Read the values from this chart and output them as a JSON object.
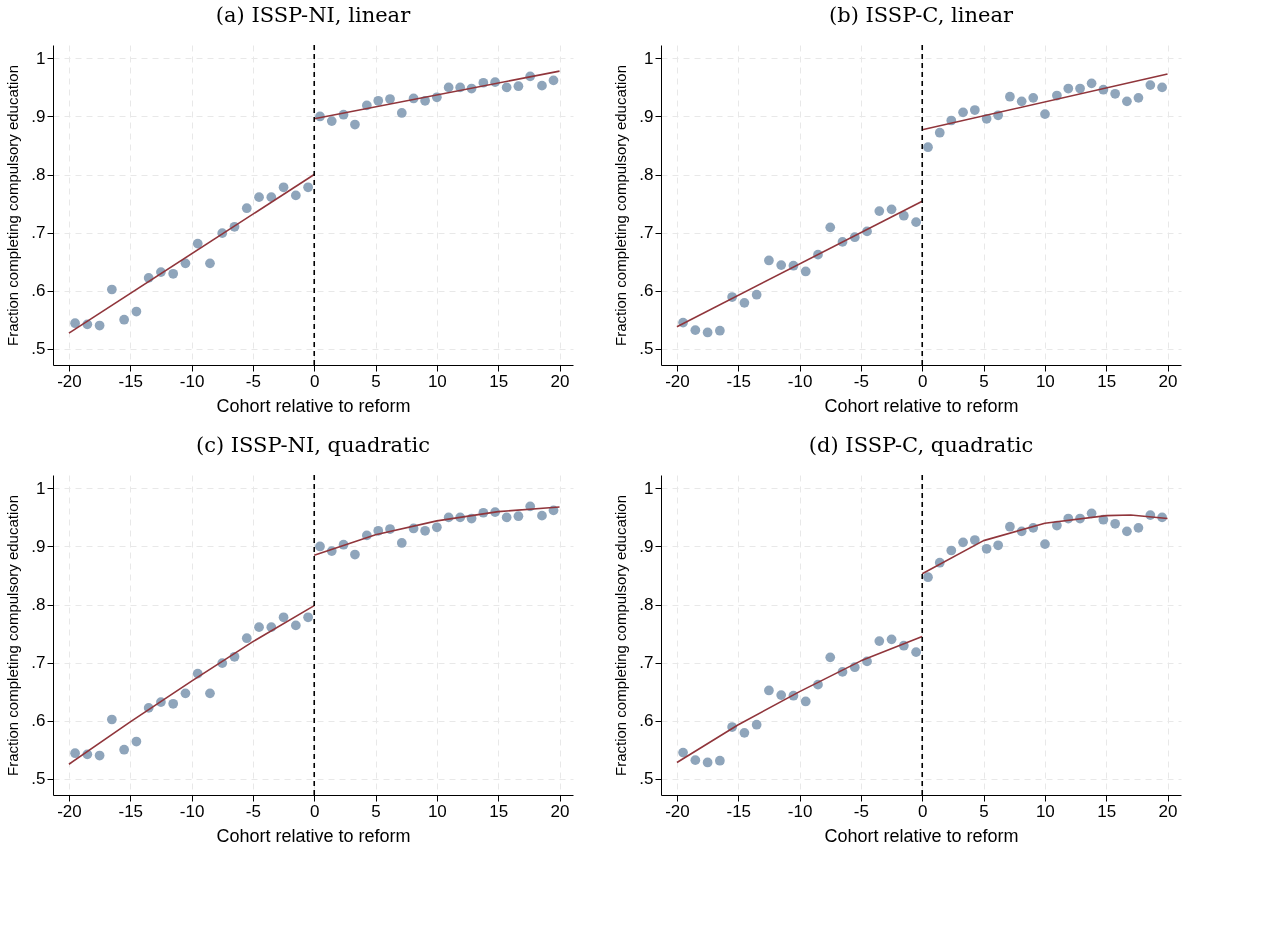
{
  "chart_data": [
    {
      "type": "scatter",
      "title": "(a) ISSP-NI, linear",
      "xlabel": "Cohort relative to reform",
      "ylabel": "Fraction completing compulsory education",
      "xlim": [
        -21.3,
        21.1
      ],
      "ylim": [
        0.472,
        1.023
      ],
      "xticks": [
        -20,
        -15,
        -10,
        -5,
        0,
        5,
        10,
        15,
        20
      ],
      "yticks": [
        {
          "value": 0.5,
          "label": ".5"
        },
        {
          "value": 0.6,
          "label": ".6"
        },
        {
          "value": 0.7,
          "label": ".7"
        },
        {
          "value": 0.8,
          "label": ".8"
        },
        {
          "value": 0.9,
          "label": ".9"
        },
        1
      ],
      "grid": true,
      "marker": "circle",
      "ref_lines": [
        {
          "axis": "x",
          "value": 0,
          "color": "#000000",
          "line_style": "dashed"
        }
      ],
      "series": [
        {
          "color": "#8fa5bb",
          "x": [
            -19.5,
            -18.5,
            -17.5,
            -16.5,
            -15.5,
            -14.5,
            -13.5,
            -12.5,
            -11.5,
            -10.5,
            -9.5,
            -8.5,
            -7.5,
            -6.5,
            -5.5,
            -4.5,
            -3.5,
            -2.5,
            -1.5,
            -0.5,
            0.47,
            1.43,
            2.39,
            3.32,
            4.29,
            5.22,
            6.18,
            7.14,
            8.1,
            9.04,
            10.0,
            10.96,
            11.9,
            12.83,
            13.79,
            14.75,
            15.69,
            16.65,
            17.61,
            18.57,
            19.51
          ],
          "values": [
            0.544,
            0.542,
            0.54,
            0.602,
            0.55,
            0.564,
            0.622,
            0.632,
            0.629,
            0.647,
            0.681,
            0.647,
            0.699,
            0.71,
            0.742,
            0.761,
            0.761,
            0.778,
            0.764,
            0.778,
            0.9,
            0.892,
            0.903,
            0.886,
            0.919,
            0.927,
            0.93,
            0.906,
            0.931,
            0.927,
            0.933,
            0.95,
            0.95,
            0.948,
            0.958,
            0.959,
            0.95,
            0.952,
            0.969,
            0.953,
            0.962
          ]
        },
        {
          "type": "line",
          "color": "#90353b",
          "line_style": "solid",
          "x": [
            -20,
            0
          ],
          "values": [
            0.527,
            0.8
          ],
          "marker": "none"
        },
        {
          "type": "line",
          "color": "#90353b",
          "line_style": "solid",
          "x": [
            0,
            20
          ],
          "values": [
            0.896,
            0.978
          ],
          "marker": "none"
        }
      ]
    },
    {
      "type": "scatter",
      "title": "(b) ISSP-C, linear",
      "xlabel": "Cohort relative to reform",
      "ylabel": "Fraction completing compulsory education",
      "xlim": [
        -21.3,
        21.1
      ],
      "ylim": [
        0.472,
        1.023
      ],
      "xticks": [
        -20,
        -15,
        -10,
        -5,
        0,
        5,
        10,
        15,
        20
      ],
      "yticks": [
        {
          "value": 0.5,
          "label": ".5"
        },
        {
          "value": 0.6,
          "label": ".6"
        },
        {
          "value": 0.7,
          "label": ".7"
        },
        {
          "value": 0.8,
          "label": ".8"
        },
        {
          "value": 0.9,
          "label": ".9"
        },
        1
      ],
      "grid": true,
      "marker": "circle",
      "ref_lines": [
        {
          "axis": "x",
          "value": 0,
          "color": "#000000",
          "line_style": "dashed"
        }
      ],
      "series": [
        {
          "color": "#8fa5bb",
          "x": [
            -19.5,
            -18.5,
            -17.5,
            -16.5,
            -15.5,
            -14.5,
            -13.5,
            -12.5,
            -11.5,
            -10.5,
            -9.5,
            -8.5,
            -7.5,
            -6.5,
            -5.5,
            -4.5,
            -3.5,
            -2.5,
            -1.5,
            -0.5,
            0.47,
            1.43,
            2.37,
            3.33,
            4.29,
            5.25,
            6.19,
            7.15,
            8.11,
            9.05,
            10.01,
            10.98,
            11.91,
            12.87,
            13.81,
            14.77,
            15.73,
            16.69,
            17.63,
            18.6,
            19.56
          ],
          "values": [
            0.545,
            0.532,
            0.528,
            0.531,
            0.589,
            0.579,
            0.593,
            0.652,
            0.644,
            0.643,
            0.633,
            0.662,
            0.709,
            0.684,
            0.692,
            0.702,
            0.737,
            0.74,
            0.729,
            0.718,
            0.847,
            0.872,
            0.893,
            0.907,
            0.911,
            0.896,
            0.902,
            0.934,
            0.926,
            0.932,
            0.904,
            0.936,
            0.948,
            0.948,
            0.957,
            0.946,
            0.939,
            0.926,
            0.932,
            0.954,
            0.95
          ]
        },
        {
          "type": "line",
          "color": "#90353b",
          "line_style": "solid",
          "x": [
            -20,
            0
          ],
          "values": [
            0.538,
            0.754
          ],
          "marker": "none"
        },
        {
          "type": "line",
          "color": "#90353b",
          "line_style": "solid",
          "x": [
            0,
            20
          ],
          "values": [
            0.877,
            0.973
          ],
          "marker": "none"
        }
      ]
    },
    {
      "type": "scatter",
      "title": "(c) ISSP-NI, quadratic",
      "xlabel": "Cohort relative to reform",
      "ylabel": "Fraction completing compulsory education",
      "xlim": [
        -21.3,
        21.1
      ],
      "ylim": [
        0.472,
        1.023
      ],
      "xticks": [
        -20,
        -15,
        -10,
        -5,
        0,
        5,
        10,
        15,
        20
      ],
      "yticks": [
        {
          "value": 0.5,
          "label": ".5"
        },
        {
          "value": 0.6,
          "label": ".6"
        },
        {
          "value": 0.7,
          "label": ".7"
        },
        {
          "value": 0.8,
          "label": ".8"
        },
        {
          "value": 0.9,
          "label": ".9"
        },
        1
      ],
      "grid": true,
      "marker": "circle",
      "ref_lines": [
        {
          "axis": "x",
          "value": 0,
          "color": "#000000",
          "line_style": "dashed"
        }
      ],
      "series": [
        {
          "color": "#8fa5bb",
          "x": [
            -19.5,
            -18.5,
            -17.5,
            -16.5,
            -15.5,
            -14.5,
            -13.5,
            -12.5,
            -11.5,
            -10.5,
            -9.5,
            -8.5,
            -7.5,
            -6.5,
            -5.5,
            -4.5,
            -3.5,
            -2.5,
            -1.5,
            -0.5,
            0.47,
            1.43,
            2.39,
            3.32,
            4.29,
            5.22,
            6.18,
            7.14,
            8.1,
            9.04,
            10.0,
            10.96,
            11.9,
            12.83,
            13.79,
            14.75,
            15.69,
            16.65,
            17.61,
            18.57,
            19.51
          ],
          "values": [
            0.544,
            0.542,
            0.54,
            0.602,
            0.55,
            0.564,
            0.622,
            0.632,
            0.629,
            0.647,
            0.681,
            0.647,
            0.699,
            0.71,
            0.742,
            0.761,
            0.761,
            0.778,
            0.764,
            0.778,
            0.9,
            0.892,
            0.903,
            0.886,
            0.919,
            0.927,
            0.93,
            0.906,
            0.931,
            0.927,
            0.933,
            0.95,
            0.95,
            0.948,
            0.958,
            0.959,
            0.95,
            0.952,
            0.969,
            0.953,
            0.962
          ]
        },
        {
          "type": "line",
          "color": "#90353b",
          "line_style": "solid",
          "x": [
            -20,
            -15,
            -10,
            -5,
            0
          ],
          "values": [
            0.525,
            0.598,
            0.668,
            0.736,
            0.798
          ],
          "marker": "none"
        },
        {
          "type": "line",
          "color": "#90353b",
          "line_style": "solid",
          "x": [
            0,
            5,
            10,
            15,
            20
          ],
          "values": [
            0.885,
            0.92,
            0.944,
            0.96,
            0.968
          ],
          "marker": "none"
        }
      ]
    },
    {
      "type": "scatter",
      "title": "(d) ISSP-C, quadratic",
      "xlabel": "Cohort relative to reform",
      "ylabel": "Fraction completing compulsory education",
      "xlim": [
        -21.3,
        21.1
      ],
      "ylim": [
        0.472,
        1.023
      ],
      "xticks": [
        -20,
        -15,
        -10,
        -5,
        0,
        5,
        10,
        15,
        20
      ],
      "yticks": [
        {
          "value": 0.5,
          "label": ".5"
        },
        {
          "value": 0.6,
          "label": ".6"
        },
        {
          "value": 0.7,
          "label": ".7"
        },
        {
          "value": 0.8,
          "label": ".8"
        },
        {
          "value": 0.9,
          "label": ".9"
        },
        1
      ],
      "grid": true,
      "marker": "circle",
      "ref_lines": [
        {
          "axis": "x",
          "value": 0,
          "color": "#000000",
          "line_style": "dashed"
        }
      ],
      "series": [
        {
          "color": "#8fa5bb",
          "x": [
            -19.5,
            -18.5,
            -17.5,
            -16.5,
            -15.5,
            -14.5,
            -13.5,
            -12.5,
            -11.5,
            -10.5,
            -9.5,
            -8.5,
            -7.5,
            -6.5,
            -5.5,
            -4.5,
            -3.5,
            -2.5,
            -1.5,
            -0.5,
            0.47,
            1.43,
            2.37,
            3.33,
            4.29,
            5.25,
            6.19,
            7.15,
            8.11,
            9.05,
            10.01,
            10.98,
            11.91,
            12.87,
            13.81,
            14.77,
            15.73,
            16.69,
            17.63,
            18.6,
            19.56
          ],
          "values": [
            0.545,
            0.532,
            0.528,
            0.531,
            0.589,
            0.579,
            0.593,
            0.652,
            0.644,
            0.643,
            0.633,
            0.662,
            0.709,
            0.684,
            0.692,
            0.702,
            0.737,
            0.74,
            0.729,
            0.718,
            0.847,
            0.872,
            0.893,
            0.907,
            0.911,
            0.896,
            0.902,
            0.934,
            0.926,
            0.932,
            0.904,
            0.936,
            0.948,
            0.948,
            0.957,
            0.946,
            0.939,
            0.926,
            0.932,
            0.954,
            0.95
          ]
        },
        {
          "type": "line",
          "color": "#90353b",
          "line_style": "solid",
          "x": [
            -20,
            -15,
            -10,
            -5,
            0
          ],
          "values": [
            0.528,
            0.593,
            0.65,
            0.703,
            0.745
          ],
          "marker": "none"
        },
        {
          "type": "line",
          "color": "#90353b",
          "line_style": "solid",
          "x": [
            0,
            5,
            10,
            15,
            17,
            20
          ],
          "values": [
            0.853,
            0.91,
            0.94,
            0.953,
            0.954,
            0.948
          ],
          "marker": "none"
        }
      ]
    }
  ]
}
